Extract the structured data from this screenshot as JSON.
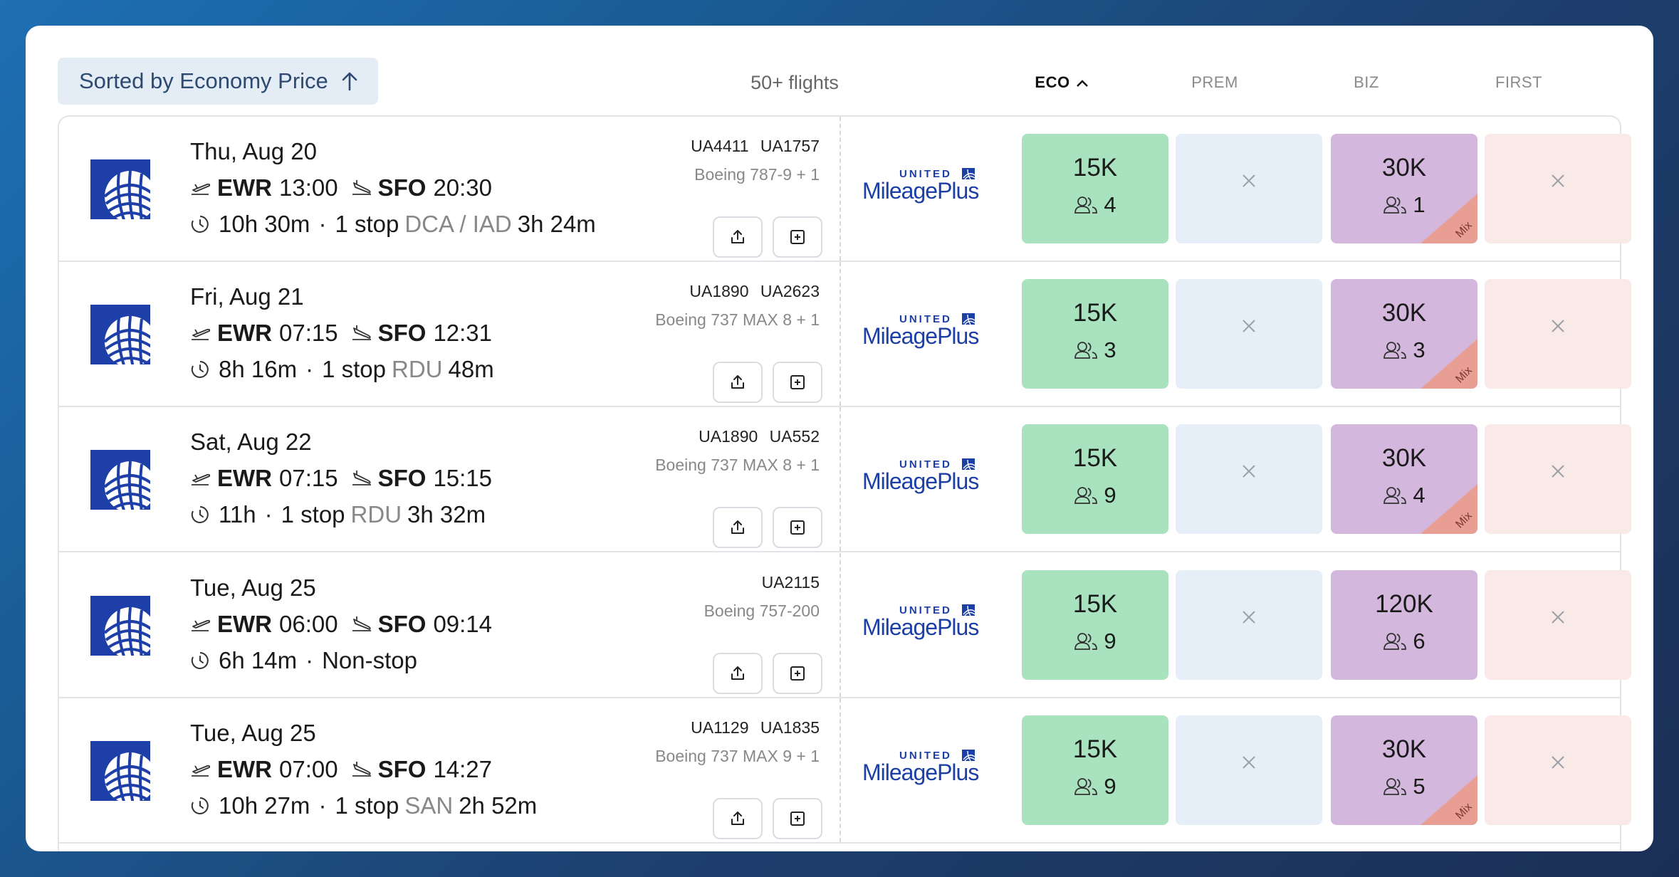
{
  "header": {
    "sort_label": "Sorted by Economy Price",
    "flights_count": "50+ flights",
    "columns": [
      "ECO",
      "PREM",
      "BIZ",
      "FIRST"
    ]
  },
  "rows": [
    {
      "date": "Thu, Aug 20",
      "dep_code": "EWR",
      "dep_time": "13:00",
      "arr_code": "SFO",
      "arr_time": "20:30",
      "duration": "10h 30m",
      "stops": "1 stop",
      "via": "DCA / IAD",
      "layover": "3h 24m",
      "flight_numbers": "UA4411 UA1757",
      "aircraft": "Boeing 787-9 + 1",
      "program_brand": "UNITED",
      "program_name": "MileagePlus",
      "eco": {
        "points": "15K",
        "seats": "4"
      },
      "prem": null,
      "biz": {
        "points": "30K",
        "seats": "1",
        "mix": "Mix"
      },
      "first": null
    },
    {
      "date": "Fri, Aug 21",
      "dep_code": "EWR",
      "dep_time": "07:15",
      "arr_code": "SFO",
      "arr_time": "12:31",
      "duration": "8h 16m",
      "stops": "1 stop",
      "via": "RDU",
      "layover": "48m",
      "flight_numbers": "UA1890 UA2623",
      "aircraft": "Boeing 737 MAX 8 + 1",
      "program_brand": "UNITED",
      "program_name": "MileagePlus",
      "eco": {
        "points": "15K",
        "seats": "3"
      },
      "prem": null,
      "biz": {
        "points": "30K",
        "seats": "3",
        "mix": "Mix"
      },
      "first": null
    },
    {
      "date": "Sat, Aug 22",
      "dep_code": "EWR",
      "dep_time": "07:15",
      "arr_code": "SFO",
      "arr_time": "15:15",
      "duration": "11h",
      "stops": "1 stop",
      "via": "RDU",
      "layover": "3h 32m",
      "flight_numbers": "UA1890 UA552",
      "aircraft": "Boeing 737 MAX 8 + 1",
      "program_brand": "UNITED",
      "program_name": "MileagePlus",
      "eco": {
        "points": "15K",
        "seats": "9"
      },
      "prem": null,
      "biz": {
        "points": "30K",
        "seats": "4",
        "mix": "Mix"
      },
      "first": null
    },
    {
      "date": "Tue, Aug 25",
      "dep_code": "EWR",
      "dep_time": "06:00",
      "arr_code": "SFO",
      "arr_time": "09:14",
      "duration": "6h 14m",
      "stops": "Non-stop",
      "via": "",
      "layover": "",
      "flight_numbers": "UA2115",
      "aircraft": "Boeing 757-200",
      "program_brand": "UNITED",
      "program_name": "MileagePlus",
      "eco": {
        "points": "15K",
        "seats": "9"
      },
      "prem": null,
      "biz": {
        "points": "120K",
        "seats": "6",
        "mix": ""
      },
      "first": null
    },
    {
      "date": "Tue, Aug 25",
      "dep_code": "EWR",
      "dep_time": "07:00",
      "arr_code": "SFO",
      "arr_time": "14:27",
      "duration": "10h 27m",
      "stops": "1 stop",
      "via": "SAN",
      "layover": "2h 52m",
      "flight_numbers": "UA1129 UA1835",
      "aircraft": "Boeing 737 MAX 9 + 1",
      "program_brand": "UNITED",
      "program_name": "MileagePlus",
      "eco": {
        "points": "15K",
        "seats": "9"
      },
      "prem": null,
      "biz": {
        "points": "30K",
        "seats": "5",
        "mix": "Mix"
      },
      "first": null
    }
  ],
  "unavailable_symbol": "×"
}
